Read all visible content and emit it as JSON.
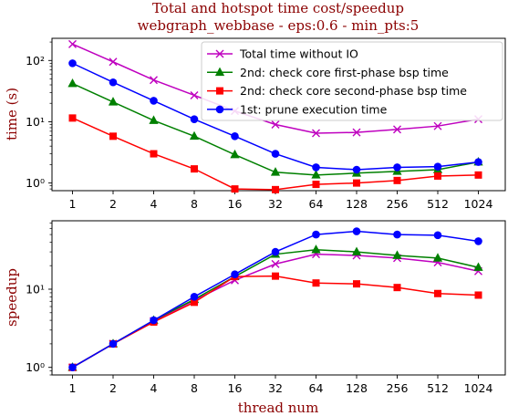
{
  "chart_data": {
    "type": "line",
    "title": "Total and hotspot time cost/speedup",
    "subtitle": "webgraph_webbase - eps:0.6 - min_pts:5",
    "xlabel": "thread num",
    "x": [
      "1",
      "2",
      "4",
      "8",
      "16",
      "32",
      "64",
      "128",
      "256",
      "512",
      "1024"
    ],
    "panels": [
      {
        "ylabel": "time (s)",
        "yscale": "log",
        "ylim": [
          0.75,
          230
        ],
        "yticks": [
          {
            "value": 1,
            "label": "10⁰"
          },
          {
            "value": 10,
            "label": "10¹"
          },
          {
            "value": 100,
            "label": "10²"
          }
        ],
        "legend": "top-right",
        "series": [
          {
            "name": "Total time without IO",
            "color": "#bf00bf",
            "marker": "x",
            "values": [
              185,
              95,
              48,
              27,
              15,
              9,
              6.5,
              6.7,
              7.5,
              8.5,
              11
            ]
          },
          {
            "name": "2nd: check core first-phase bsp time",
            "color": "#008000",
            "marker": "triangle",
            "values": [
              42,
              21,
              10.5,
              5.8,
              2.9,
              1.5,
              1.35,
              1.45,
              1.55,
              1.65,
              2.2
            ]
          },
          {
            "name": "2nd: check core second-phase bsp time",
            "color": "#ff0000",
            "marker": "square",
            "values": [
              11.5,
              5.8,
              3.0,
              1.7,
              0.8,
              0.78,
              0.95,
              1.0,
              1.1,
              1.3,
              1.35
            ]
          },
          {
            "name": "1st: prune execution time",
            "color": "#0000ff",
            "marker": "circle",
            "values": [
              90,
              44,
              22,
              11,
              5.8,
              3.0,
              1.8,
              1.65,
              1.8,
              1.85,
              2.2
            ]
          }
        ]
      },
      {
        "ylabel": "speedup",
        "yscale": "log",
        "ylim": [
          0.8,
          75
        ],
        "yticks": [
          {
            "value": 1,
            "label": "10⁰"
          },
          {
            "value": 10,
            "label": "10¹"
          }
        ],
        "series": [
          {
            "name": "Total time without IO",
            "color": "#bf00bf",
            "marker": "x",
            "values": [
              1,
              2,
              3.9,
              7.2,
              13,
              21,
              28,
              27,
              25,
              22,
              17
            ]
          },
          {
            "name": "2nd: check core first-phase bsp time",
            "color": "#008000",
            "marker": "triangle",
            "values": [
              1,
              2,
              4,
              7.4,
              14.5,
              28,
              32,
              30,
              27,
              25,
              19
            ]
          },
          {
            "name": "2nd: check core second-phase bsp time",
            "color": "#ff0000",
            "marker": "square",
            "values": [
              1,
              2,
              3.8,
              6.8,
              14.5,
              14.7,
              12,
              11.7,
              10.5,
              8.8,
              8.4
            ]
          },
          {
            "name": "1st: prune execution time",
            "color": "#0000ff",
            "marker": "circle",
            "values": [
              1,
              2,
              4,
              8,
              15.5,
              30,
              50,
              55,
              50,
              49,
              41
            ]
          }
        ]
      }
    ]
  }
}
